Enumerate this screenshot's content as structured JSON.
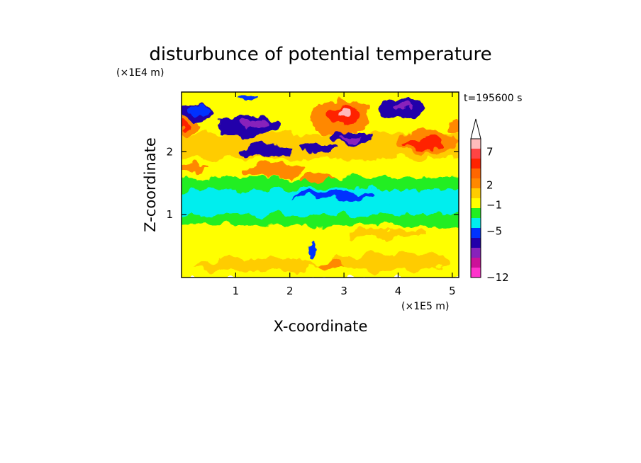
{
  "chart_data": {
    "type": "heatmap",
    "title": "disturbunce of potential temperature",
    "xlabel": "X-coordinate",
    "ylabel": "Z-coordinate",
    "x_scale_label": "(×1E5 m)",
    "y_scale_label": "(×1E4 m)",
    "time_label": "t=195600 s",
    "xlim": [
      0,
      5.12
    ],
    "ylim": [
      0,
      2.95
    ],
    "x_ticks": [
      1,
      2,
      3,
      4,
      5
    ],
    "y_ticks": [
      1,
      2
    ],
    "x_tick_labels": [
      "1",
      "2",
      "3",
      "4",
      "5"
    ],
    "y_tick_labels": [
      "1",
      "2"
    ],
    "colorbar": {
      "tick_labels": [
        "7",
        "2",
        "−1",
        "−5",
        "−12"
      ],
      "tick_values": [
        7,
        2,
        -1,
        -5,
        -12
      ],
      "extend": "max",
      "colors": [
        "#ff33cc",
        "#cc1199",
        "#8822bb",
        "#2200aa",
        "#0033ff",
        "#00eeee",
        "#22ee22",
        "#ffff00",
        "#ffcc00",
        "#ff8800",
        "#ff6600",
        "#ff2200",
        "#ff4444",
        "#ffbbbb"
      ]
    },
    "regions": [
      {
        "level": 3,
        "x": 0.25,
        "y": 2.62,
        "rx": 0.35,
        "ry": 0.12
      },
      {
        "level": 4,
        "x": 0.3,
        "y": 2.66,
        "rx": 0.22,
        "ry": 0.06
      },
      {
        "level": 3,
        "x": 1.25,
        "y": 2.42,
        "rx": 0.55,
        "ry": 0.16
      },
      {
        "level": 2,
        "x": 1.35,
        "y": 2.45,
        "rx": 0.3,
        "ry": 0.07
      },
      {
        "level": 3,
        "x": 1.55,
        "y": 2.02,
        "rx": 0.5,
        "ry": 0.1
      },
      {
        "level": 3,
        "x": 2.55,
        "y": 2.05,
        "rx": 0.35,
        "ry": 0.08
      },
      {
        "level": 3,
        "x": 3.12,
        "y": 2.22,
        "rx": 0.38,
        "ry": 0.1
      },
      {
        "level": 2,
        "x": 3.12,
        "y": 2.2,
        "rx": 0.18,
        "ry": 0.04
      },
      {
        "level": 3,
        "x": 4.05,
        "y": 2.7,
        "rx": 0.42,
        "ry": 0.14
      },
      {
        "level": 2,
        "x": 4.08,
        "y": 2.72,
        "rx": 0.16,
        "ry": 0.05
      },
      {
        "level": 4,
        "x": 1.2,
        "y": 2.82,
        "rx": 0.18,
        "ry": 0.05
      },
      {
        "level": 9,
        "x": 2.9,
        "y": 2.55,
        "rx": 0.55,
        "ry": 0.28
      },
      {
        "level": 11,
        "x": 3.0,
        "y": 2.58,
        "rx": 0.3,
        "ry": 0.16
      },
      {
        "level": 13,
        "x": 3.0,
        "y": 2.63,
        "rx": 0.12,
        "ry": 0.08
      },
      {
        "level": 9,
        "x": 4.55,
        "y": 2.15,
        "rx": 0.55,
        "ry": 0.18
      },
      {
        "level": 11,
        "x": 4.5,
        "y": 2.12,
        "rx": 0.35,
        "ry": 0.1
      },
      {
        "level": 9,
        "x": 0.12,
        "y": 2.4,
        "rx": 0.18,
        "ry": 0.12
      },
      {
        "level": 11,
        "x": 0.08,
        "y": 2.4,
        "rx": 0.08,
        "ry": 0.06
      },
      {
        "level": 9,
        "x": 5.05,
        "y": 2.4,
        "rx": 0.12,
        "ry": 0.1
      },
      {
        "level": 9,
        "x": 1.7,
        "y": 1.7,
        "rx": 0.55,
        "ry": 0.1
      },
      {
        "level": 9,
        "x": 0.2,
        "y": 1.75,
        "rx": 0.3,
        "ry": 0.05
      },
      {
        "level": 9,
        "x": 2.5,
        "y": 1.6,
        "rx": 0.3,
        "ry": 0.05
      },
      {
        "level": 5,
        "x": 2.9,
        "y": 1.28,
        "rx": 2.05,
        "ry": 0.14
      },
      {
        "level": 4,
        "x": 2.8,
        "y": 1.3,
        "rx": 0.8,
        "ry": 0.06
      },
      {
        "level": 5,
        "x": 0.9,
        "y": 1.08,
        "rx": 0.9,
        "ry": 0.07
      },
      {
        "level": 5,
        "x": 0.08,
        "y": 1.2,
        "rx": 0.1,
        "ry": 0.06
      },
      {
        "level": 4,
        "x": 2.45,
        "y": 0.42,
        "rx": 0.03,
        "ry": 0.12
      },
      {
        "level": 8,
        "x": 1.4,
        "y": 0.2,
        "rx": 1.1,
        "ry": 0.12
      },
      {
        "level": 8,
        "x": 3.9,
        "y": 0.25,
        "rx": 1.1,
        "ry": 0.14
      },
      {
        "level": 9,
        "x": 2.75,
        "y": 0.2,
        "rx": 0.25,
        "ry": 0.08
      },
      {
        "level": 8,
        "x": 3.8,
        "y": 0.7,
        "rx": 0.7,
        "ry": 0.06
      }
    ]
  }
}
